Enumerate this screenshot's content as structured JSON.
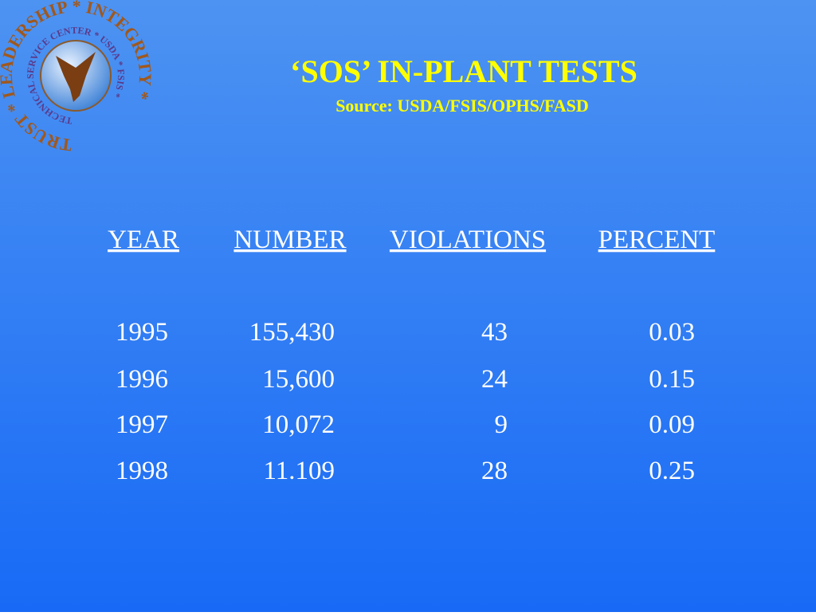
{
  "header": {
    "title": "‘SOS’ IN-PLANT TESTS",
    "source": "Source: USDA/FSIS/OPHS/FASD"
  },
  "logo": {
    "outer_text": "TRUST * LEADERSHIP * INTEGRITY *",
    "inner_text": "TECHNICAL SERVICE CENTER * USDA * FSIS *"
  },
  "table": {
    "columns": [
      "YEAR",
      "NUMBER",
      "VIOLATIONS",
      "PERCENT"
    ],
    "rows": [
      [
        "1995",
        "155,430",
        "43",
        "0.03"
      ],
      [
        "1996",
        "15,600",
        "24",
        "0.15"
      ],
      [
        "1997",
        "10,072",
        "9",
        "0.09"
      ],
      [
        "1998",
        "11.109",
        "28",
        "0.25"
      ]
    ]
  }
}
